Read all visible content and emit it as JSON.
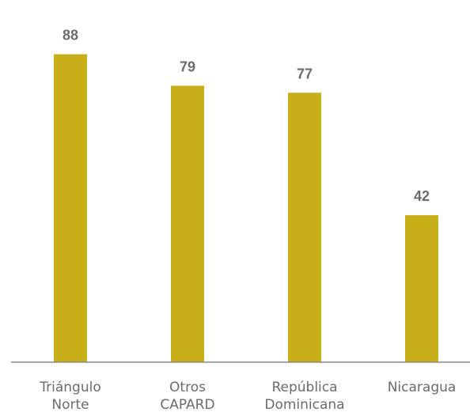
{
  "chart_data": {
    "type": "bar",
    "categories": [
      [
        "Triángulo",
        "Norte"
      ],
      [
        "Otros",
        "CAPARD"
      ],
      [
        "República",
        "Dominicana"
      ],
      [
        "Nicaragua"
      ]
    ],
    "values": [
      88,
      79,
      77,
      42
    ],
    "value_labels": [
      "88",
      "79",
      "77",
      "42"
    ],
    "ylim": [
      0,
      100
    ],
    "grid": false,
    "bar_color": "#c8ae18",
    "axis_color": "#8c8c8c",
    "text_color": "#6b6b6b"
  }
}
